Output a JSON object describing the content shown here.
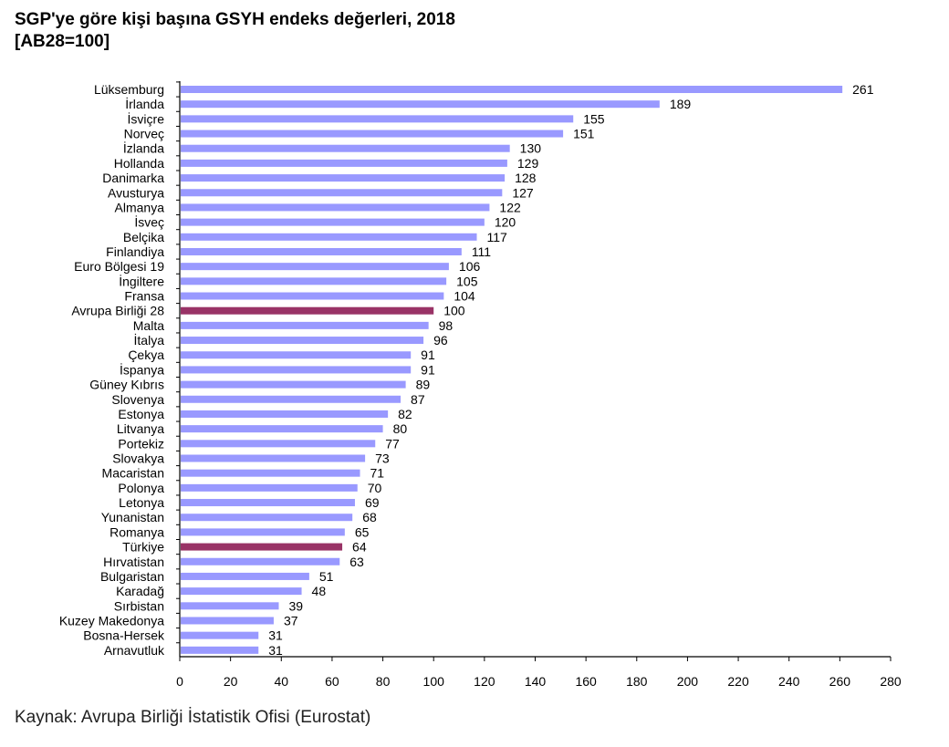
{
  "title_line1": "SGP'ye göre kişi başına GSYH endeks değerleri, 2018",
  "title_line2": "[AB28=100]",
  "source": "Kaynak: Avrupa Birliği İstatistik Ofisi (Eurostat)",
  "colors": {
    "bar": "#9999ff",
    "highlight": "#993366",
    "axis": "#000000"
  },
  "chart_data": {
    "type": "bar",
    "orientation": "horizontal",
    "title": "SGP'ye göre kişi başına GSYH endeks değerleri, 2018",
    "subtitle": "[AB28=100]",
    "xlabel": "",
    "ylabel": "",
    "xlim": [
      0,
      280
    ],
    "xticks": [
      0,
      20,
      40,
      60,
      80,
      100,
      120,
      140,
      160,
      180,
      200,
      220,
      240,
      260,
      280
    ],
    "grid": false,
    "highlighted": [
      "Avrupa Birliği 28",
      "Türkiye"
    ],
    "categories": [
      "Lüksemburg",
      "İrlanda",
      "İsviçre",
      "Norveç",
      "İzlanda",
      "Hollanda",
      "Danimarka",
      "Avusturya",
      "Almanya",
      "İsveç",
      "Belçika",
      "Finlandiya",
      "Euro Bölgesi 19",
      "İngiltere",
      "Fransa",
      "Avrupa Birliği 28",
      "Malta",
      "İtalya",
      "Çekya",
      "İspanya",
      "Güney Kıbrıs",
      "Slovenya",
      "Estonya",
      "Litvanya",
      "Portekiz",
      "Slovakya",
      "Macaristan",
      "Polonya",
      "Letonya",
      "Yunanistan",
      "Romanya",
      "Türkiye",
      "Hırvatistan",
      "Bulgaristan",
      "Karadağ",
      "Sırbistan",
      "Kuzey Makedonya",
      "Bosna-Hersek",
      "Arnavutluk"
    ],
    "values": [
      261,
      189,
      155,
      151,
      130,
      129,
      128,
      127,
      122,
      120,
      117,
      111,
      106,
      105,
      104,
      100,
      98,
      96,
      91,
      91,
      89,
      87,
      82,
      80,
      77,
      73,
      71,
      70,
      69,
      68,
      65,
      64,
      63,
      51,
      48,
      39,
      37,
      31,
      31
    ]
  }
}
